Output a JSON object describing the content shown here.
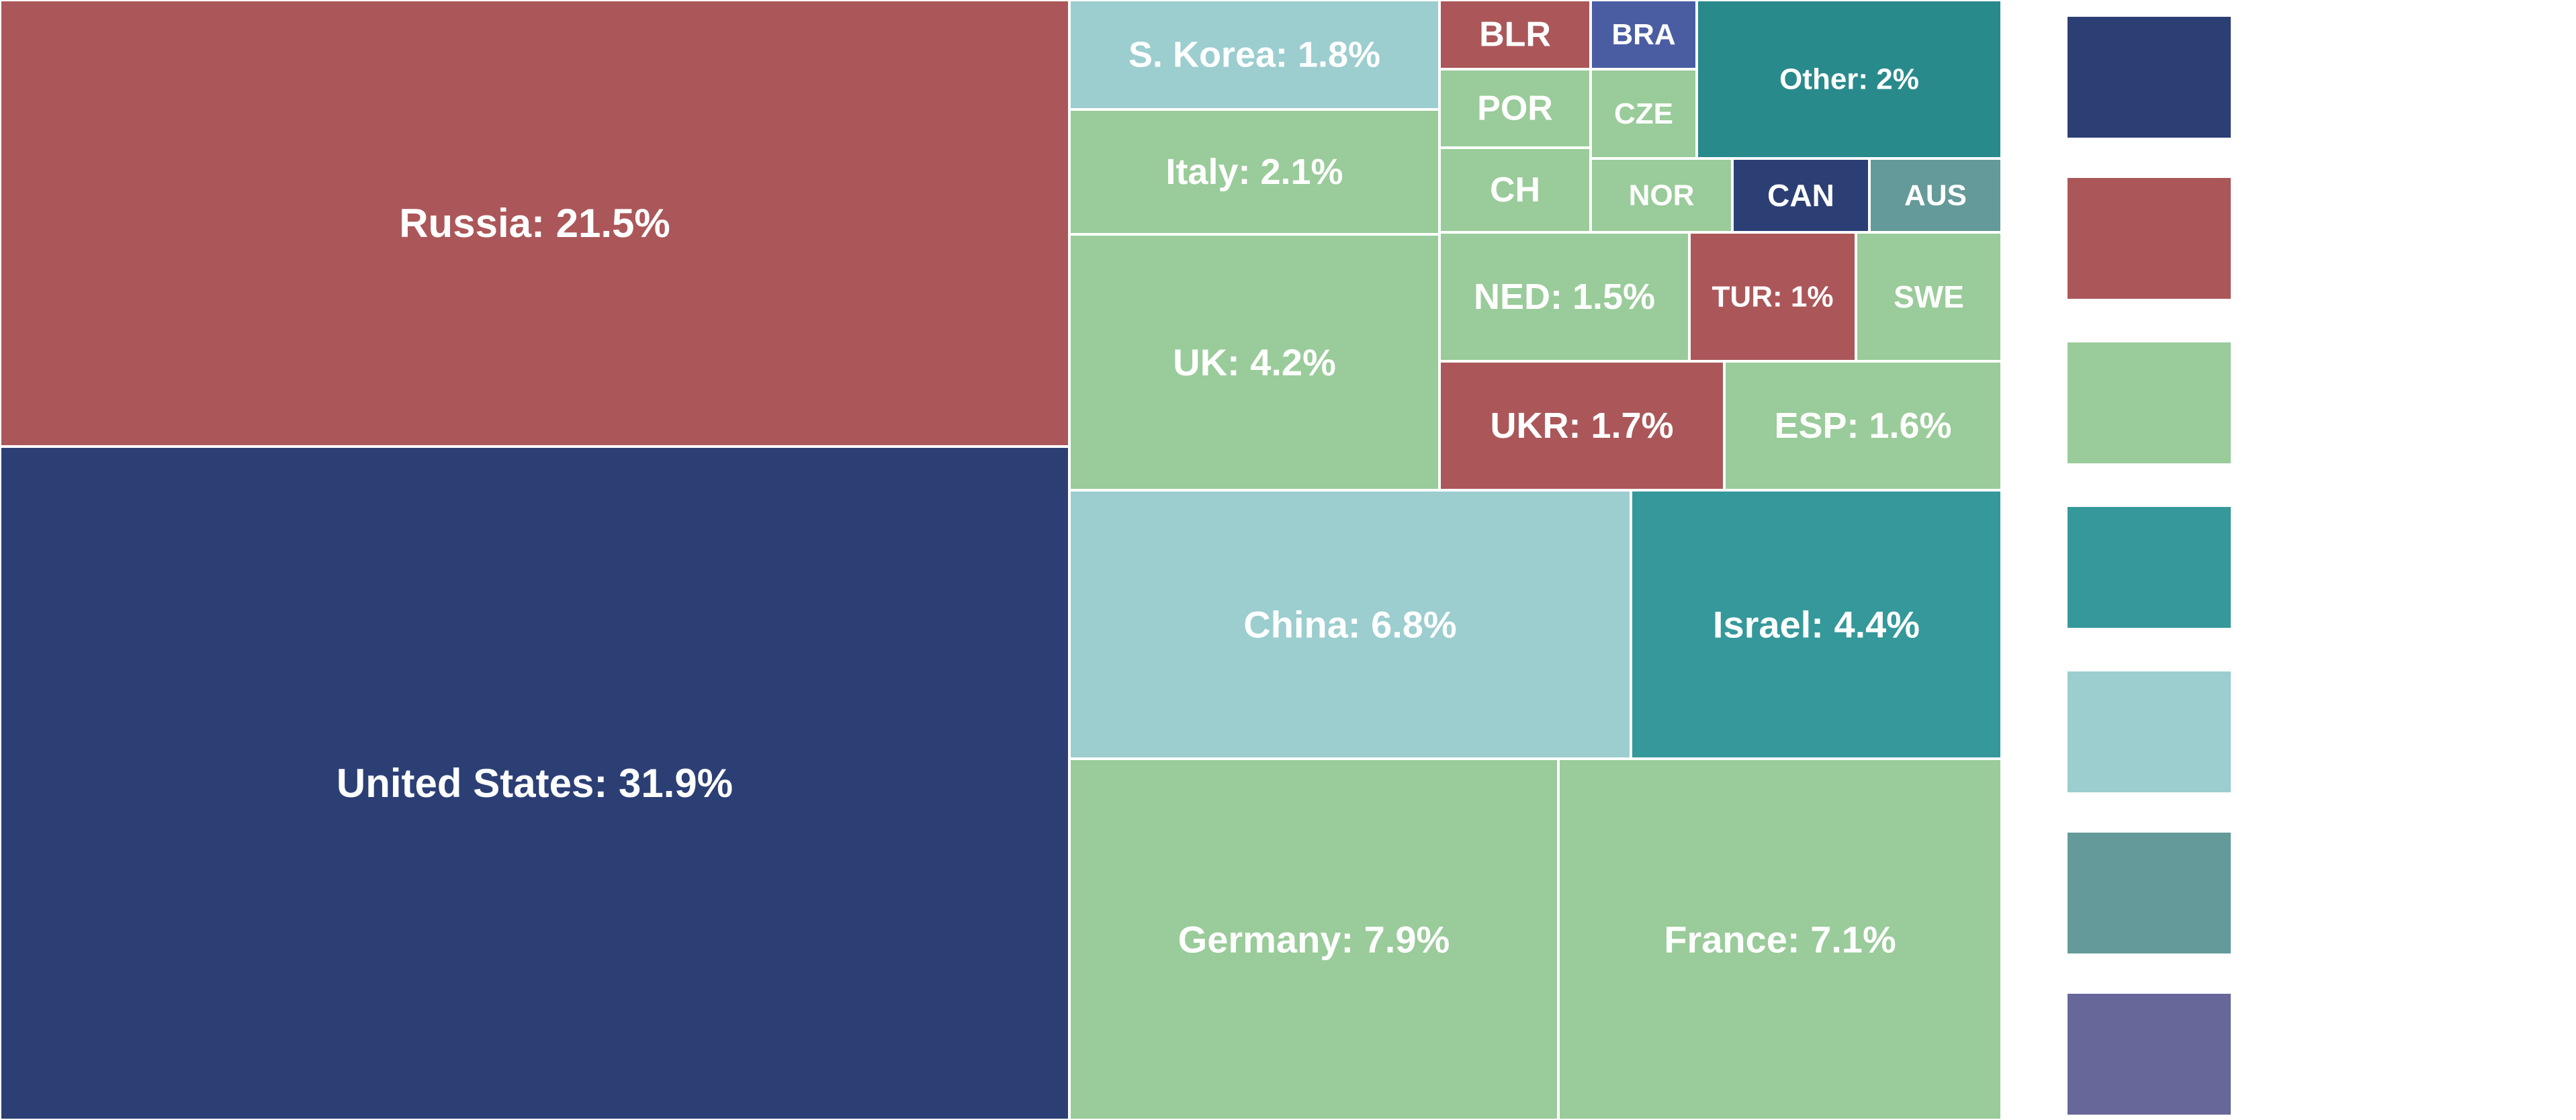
{
  "chart_data": {
    "type": "treemap",
    "colors": {
      "navy": "#2C3F75",
      "red": "#AB5759",
      "green": "#9ACB9A",
      "teal": "#35989A",
      "lightblue": "#9CCDCF",
      "slate": "#649A99",
      "purple": "#68679A",
      "blue": "#4A5DA3",
      "darkteal": "#298A8C"
    },
    "nodes": [
      {
        "key": "us",
        "label": "United States: 31.9%",
        "value": 31.9,
        "color": "navy"
      },
      {
        "key": "russia",
        "label": "Russia: 21.5%",
        "value": 21.5,
        "color": "red"
      },
      {
        "key": "germany",
        "label": "Germany: 7.9%",
        "value": 7.9,
        "color": "green"
      },
      {
        "key": "france",
        "label": "France: 7.1%",
        "value": 7.1,
        "color": "green"
      },
      {
        "key": "china",
        "label": "China: 6.8%",
        "value": 6.8,
        "color": "lightblue"
      },
      {
        "key": "israel",
        "label": "Israel: 4.4%",
        "value": 4.4,
        "color": "teal"
      },
      {
        "key": "uk",
        "label": "UK: 4.2%",
        "value": 4.2,
        "color": "green"
      },
      {
        "key": "italy",
        "label": "Italy: 2.1%",
        "value": 2.1,
        "color": "green"
      },
      {
        "key": "skorea",
        "label": "S. Korea: 1.8%",
        "value": 1.8,
        "color": "lightblue"
      },
      {
        "key": "ukr",
        "label": "UKR: 1.7%",
        "value": 1.7,
        "color": "red"
      },
      {
        "key": "esp",
        "label": "ESP: 1.6%",
        "value": 1.6,
        "color": "green"
      },
      {
        "key": "ned",
        "label": "NED: 1.5%",
        "value": 1.5,
        "color": "green"
      },
      {
        "key": "tur",
        "label": "TUR: 1%",
        "value": 1.0,
        "color": "red"
      },
      {
        "key": "swe",
        "label": "SWE",
        "value": 0.9,
        "color": "green"
      },
      {
        "key": "blr",
        "label": "BLR",
        "value": 0.8,
        "color": "red"
      },
      {
        "key": "por",
        "label": "POR",
        "value": 0.8,
        "color": "green"
      },
      {
        "key": "ch",
        "label": "CH",
        "value": 0.8,
        "color": "green"
      },
      {
        "key": "bra",
        "label": "BRA",
        "value": 0.5,
        "color": "blue"
      },
      {
        "key": "cze",
        "label": "CZE",
        "value": 0.6,
        "color": "green"
      },
      {
        "key": "other",
        "label": "Other: 2%",
        "value": 2.0,
        "color": "darkteal"
      },
      {
        "key": "nor",
        "label": "NOR",
        "value": 0.6,
        "color": "green"
      },
      {
        "key": "can",
        "label": "CAN",
        "value": 0.6,
        "color": "navy"
      },
      {
        "key": "aus",
        "label": "AUS",
        "value": 0.5,
        "color": "slate"
      }
    ],
    "legend": {
      "placement": "right",
      "swatches": [
        "navy",
        "red",
        "green",
        "teal",
        "lightblue",
        "slate",
        "purple"
      ]
    }
  }
}
